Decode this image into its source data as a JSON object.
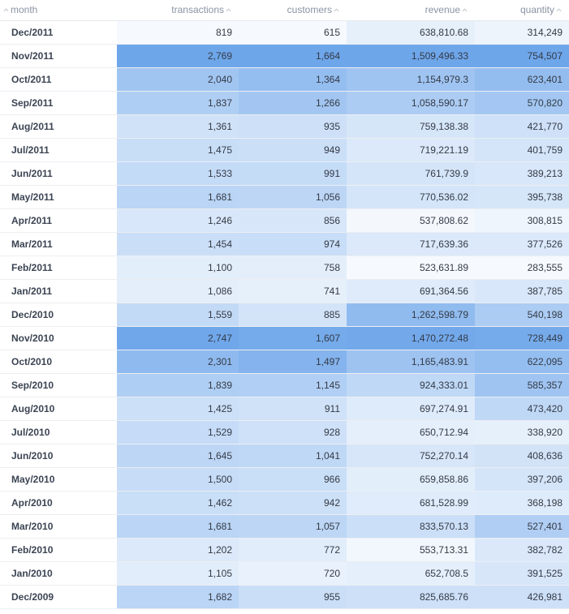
{
  "table": {
    "columns": [
      {
        "key": "month",
        "label": "month",
        "sort_icon": "sort-up-icon"
      },
      {
        "key": "transactions",
        "label": "transactions",
        "sort_icon": "sort-up-icon"
      },
      {
        "key": "customers",
        "label": "customers",
        "sort_icon": "sort-up-icon"
      },
      {
        "key": "revenue",
        "label": "revenue",
        "sort_icon": "sort-up-icon"
      },
      {
        "key": "quantity",
        "label": "quantity",
        "sort_icon": "sort-up-icon"
      }
    ],
    "heatmap_colors": {
      "low": "#ffffff",
      "high": "#6ea6ea",
      "text": "#343a46",
      "header_text": "#8a93a3"
    },
    "rows": [
      {
        "month": "Dec/2011",
        "transactions": "819",
        "customers": "615",
        "revenue": "638,810.68",
        "quantity": "314,249"
      },
      {
        "month": "Nov/2011",
        "transactions": "2,769",
        "customers": "1,664",
        "revenue": "1,509,496.33",
        "quantity": "754,507"
      },
      {
        "month": "Oct/2011",
        "transactions": "2,040",
        "customers": "1,364",
        "revenue": "1,154,979.3",
        "quantity": "623,401"
      },
      {
        "month": "Sep/2011",
        "transactions": "1,837",
        "customers": "1,266",
        "revenue": "1,058,590.17",
        "quantity": "570,820"
      },
      {
        "month": "Aug/2011",
        "transactions": "1,361",
        "customers": "935",
        "revenue": "759,138.38",
        "quantity": "421,770"
      },
      {
        "month": "Jul/2011",
        "transactions": "1,475",
        "customers": "949",
        "revenue": "719,221.19",
        "quantity": "401,759"
      },
      {
        "month": "Jun/2011",
        "transactions": "1,533",
        "customers": "991",
        "revenue": "761,739.9",
        "quantity": "389,213"
      },
      {
        "month": "May/2011",
        "transactions": "1,681",
        "customers": "1,056",
        "revenue": "770,536.02",
        "quantity": "395,738"
      },
      {
        "month": "Apr/2011",
        "transactions": "1,246",
        "customers": "856",
        "revenue": "537,808.62",
        "quantity": "308,815"
      },
      {
        "month": "Mar/2011",
        "transactions": "1,454",
        "customers": "974",
        "revenue": "717,639.36",
        "quantity": "377,526"
      },
      {
        "month": "Feb/2011",
        "transactions": "1,100",
        "customers": "758",
        "revenue": "523,631.89",
        "quantity": "283,555"
      },
      {
        "month": "Jan/2011",
        "transactions": "1,086",
        "customers": "741",
        "revenue": "691,364.56",
        "quantity": "387,785"
      },
      {
        "month": "Dec/2010",
        "transactions": "1,559",
        "customers": "885",
        "revenue": "1,262,598.79",
        "quantity": "540,198"
      },
      {
        "month": "Nov/2010",
        "transactions": "2,747",
        "customers": "1,607",
        "revenue": "1,470,272.48",
        "quantity": "728,449"
      },
      {
        "month": "Oct/2010",
        "transactions": "2,301",
        "customers": "1,497",
        "revenue": "1,165,483.91",
        "quantity": "622,095"
      },
      {
        "month": "Sep/2010",
        "transactions": "1,839",
        "customers": "1,145",
        "revenue": "924,333.01",
        "quantity": "585,357"
      },
      {
        "month": "Aug/2010",
        "transactions": "1,425",
        "customers": "911",
        "revenue": "697,274.91",
        "quantity": "473,420"
      },
      {
        "month": "Jul/2010",
        "transactions": "1,529",
        "customers": "928",
        "revenue": "650,712.94",
        "quantity": "338,920"
      },
      {
        "month": "Jun/2010",
        "transactions": "1,645",
        "customers": "1,041",
        "revenue": "752,270.14",
        "quantity": "408,636"
      },
      {
        "month": "May/2010",
        "transactions": "1,500",
        "customers": "966",
        "revenue": "659,858.86",
        "quantity": "397,206"
      },
      {
        "month": "Apr/2010",
        "transactions": "1,462",
        "customers": "942",
        "revenue": "681,528.99",
        "quantity": "368,198"
      },
      {
        "month": "Mar/2010",
        "transactions": "1,681",
        "customers": "1,057",
        "revenue": "833,570.13",
        "quantity": "527,401"
      },
      {
        "month": "Feb/2010",
        "transactions": "1,202",
        "customers": "772",
        "revenue": "553,713.31",
        "quantity": "382,782"
      },
      {
        "month": "Jan/2010",
        "transactions": "1,105",
        "customers": "720",
        "revenue": "652,708.5",
        "quantity": "391,525"
      },
      {
        "month": "Dec/2009",
        "transactions": "1,682",
        "customers": "955",
        "revenue": "825,685.76",
        "quantity": "426,981"
      }
    ]
  }
}
